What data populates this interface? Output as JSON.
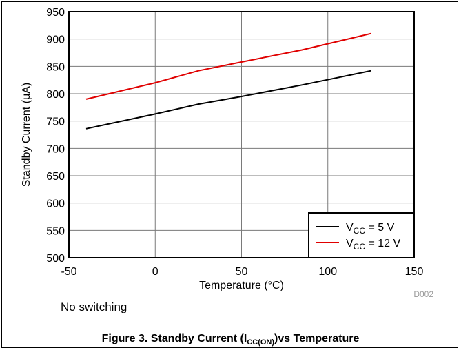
{
  "chart_data": {
    "type": "line",
    "xlabel": "Temperature (°C)",
    "ylabel": "Standby Current (μA)",
    "xlim": [
      -50,
      150
    ],
    "ylim": [
      500,
      950
    ],
    "xticks": [
      -50,
      0,
      50,
      100,
      150
    ],
    "yticks": [
      500,
      550,
      600,
      650,
      700,
      750,
      800,
      850,
      900,
      950
    ],
    "grid": true,
    "legend_position": "bottom-right",
    "series": [
      {
        "name": "VCC = 5 V",
        "name_main": "V",
        "name_sub": "CC",
        "name_rest": " = 5 V",
        "color": "#000000",
        "x": [
          -40,
          0,
          25,
          50,
          85,
          125
        ],
        "y": [
          736,
          763,
          781,
          795,
          816,
          842
        ]
      },
      {
        "name": "VCC = 12 V",
        "name_main": "V",
        "name_sub": "CC",
        "name_rest": " = 12 V",
        "color": "#e00000",
        "x": [
          -40,
          0,
          25,
          50,
          85,
          125
        ],
        "y": [
          790,
          820,
          842,
          858,
          880,
          910
        ]
      }
    ],
    "id_label": "D002"
  },
  "note": "No switching",
  "caption": {
    "prefix": "Figure 3. Standby Current (I",
    "sub": "CC(ON)",
    "suffix": ")vs Temperature"
  }
}
